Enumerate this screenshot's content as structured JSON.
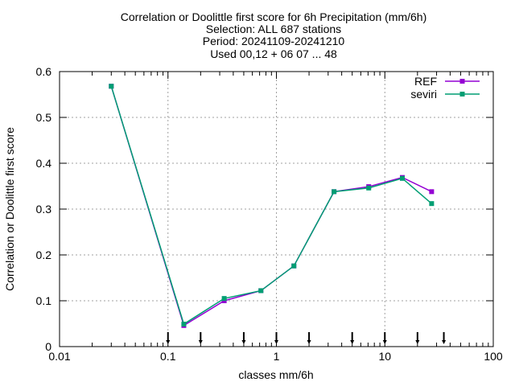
{
  "chart_data": {
    "type": "line",
    "title_lines": [
      "Correlation or Doolittle first score  for 6h Precipitation (mm/6h)",
      "Selection: ALL    687 stations",
      "Period: 20241109-20241210",
      "Used 00,12 + 06 07 ... 48"
    ],
    "xlabel": "classes mm/6h",
    "ylabel": "Correlation or Doolittle first score",
    "x_scale": "log",
    "xlim": [
      0.01,
      100
    ],
    "ylim": [
      0,
      0.6
    ],
    "x_ticks": [
      {
        "value": 0.01,
        "label": "0.01"
      },
      {
        "value": 0.1,
        "label": "0.1"
      },
      {
        "value": 1,
        "label": "1"
      },
      {
        "value": 10,
        "label": "10"
      },
      {
        "value": 100,
        "label": "100"
      }
    ],
    "y_ticks": [
      {
        "value": 0,
        "label": "0"
      },
      {
        "value": 0.1,
        "label": "0.1"
      },
      {
        "value": 0.2,
        "label": "0.2"
      },
      {
        "value": 0.3,
        "label": "0.3"
      },
      {
        "value": 0.4,
        "label": "0.4"
      },
      {
        "value": 0.5,
        "label": "0.5"
      },
      {
        "value": 0.6,
        "label": "0.6"
      }
    ],
    "grid": true,
    "legend_position": "top-right",
    "class_thresholds": [
      0.1,
      0.2,
      0.5,
      1,
      2,
      5,
      10,
      20,
      35
    ],
    "series": [
      {
        "name": "REF",
        "color": "#9400d3",
        "x": [
          0.03,
          0.14,
          0.33,
          0.72,
          1.45,
          3.4,
          7.1,
          14.5,
          27
        ],
        "y": [
          0.568,
          0.046,
          0.1,
          0.122,
          0.176,
          0.338,
          0.349,
          0.369,
          0.338
        ]
      },
      {
        "name": "seviri",
        "color": "#009e73",
        "x": [
          0.03,
          0.14,
          0.33,
          0.72,
          1.45,
          3.4,
          7.1,
          14.5,
          27
        ],
        "y": [
          0.568,
          0.049,
          0.105,
          0.122,
          0.176,
          0.338,
          0.346,
          0.367,
          0.312
        ]
      }
    ]
  }
}
